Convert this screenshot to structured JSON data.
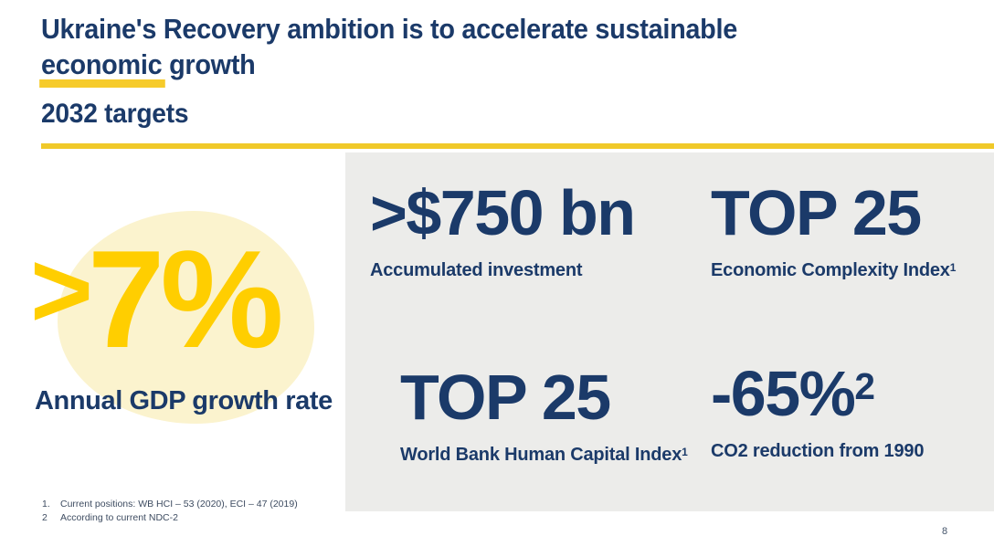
{
  "slide": {
    "title_line1": "Ukraine's Recovery ambition is to accelerate sustainable",
    "title_line2_highlighted": "economic",
    "title_line2_rest": " growth",
    "section_heading": "2032 targets",
    "page_number": "8"
  },
  "hero_stat": {
    "prefix": ">",
    "value": "7%",
    "label": "Annual GDP growth rate"
  },
  "targets": [
    {
      "value": ">$750 bn",
      "label": "Accumulated investment"
    },
    {
      "value": "TOP 25",
      "label": "Economic Complexity Index",
      "label_sup": "1"
    },
    {
      "value": "TOP 25",
      "label": "World Bank Human Capital Index",
      "label_sup": "1"
    },
    {
      "value": "-65%",
      "value_sup": "2",
      "label": "CO2 reduction from 1990"
    }
  ],
  "footnotes": [
    {
      "marker": "1.",
      "text": "Current positions: WB HCI – 53 (2020), ECI – 47 (2019)"
    },
    {
      "marker": "2",
      "text": "According to current NDC-2"
    }
  ],
  "accent_colors": {
    "navy": "#1b3a69",
    "yellow": "#ffce00",
    "gold_rule": "#f0c929",
    "pale_yellow_blob": "#fbf3ce",
    "panel_gray": "#ececea",
    "footnote_gray": "#3e4c61"
  }
}
